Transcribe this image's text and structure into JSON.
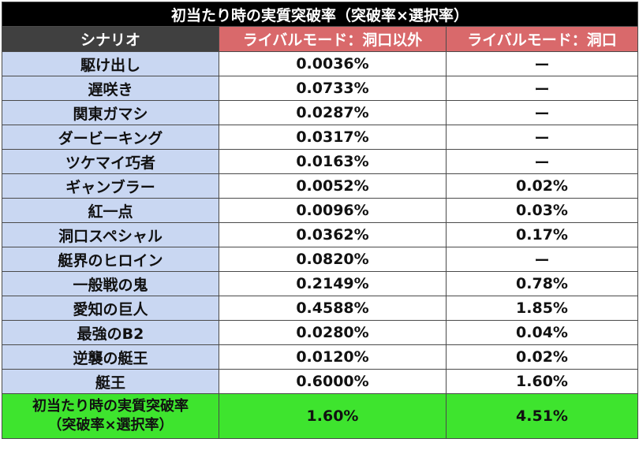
{
  "title": "初当たり時の実質突破率（突破率×選択率）",
  "headers": {
    "scenario": "シナリオ",
    "rival_other": "ライバルモード：洞口以外",
    "rival_horaguchi": "ライバルモード：洞口"
  },
  "rows": [
    {
      "scenario": "駆け出し",
      "rival_other": "0.0036%",
      "rival_horaguchi": "ー"
    },
    {
      "scenario": "遅咲き",
      "rival_other": "0.0733%",
      "rival_horaguchi": "ー"
    },
    {
      "scenario": "関東ガマシ",
      "rival_other": "0.0287%",
      "rival_horaguchi": "ー"
    },
    {
      "scenario": "ダービーキング",
      "rival_other": "0.0317%",
      "rival_horaguchi": "ー"
    },
    {
      "scenario": "ツケマイ巧者",
      "rival_other": "0.0163%",
      "rival_horaguchi": "ー"
    },
    {
      "scenario": "ギャンブラー",
      "rival_other": "0.0052%",
      "rival_horaguchi": "0.02%"
    },
    {
      "scenario": "紅一点",
      "rival_other": "0.0096%",
      "rival_horaguchi": "0.03%"
    },
    {
      "scenario": "洞口スペシャル",
      "rival_other": "0.0362%",
      "rival_horaguchi": "0.17%"
    },
    {
      "scenario": "艇界のヒロイン",
      "rival_other": "0.0820%",
      "rival_horaguchi": "ー"
    },
    {
      "scenario": "一般戦の鬼",
      "rival_other": "0.2149%",
      "rival_horaguchi": "0.78%"
    },
    {
      "scenario": "愛知の巨人",
      "rival_other": "0.4588%",
      "rival_horaguchi": "1.85%"
    },
    {
      "scenario": "最強のB2",
      "rival_other": "0.0280%",
      "rival_horaguchi": "0.04%"
    },
    {
      "scenario": "逆襲の艇王",
      "rival_other": "0.0120%",
      "rival_horaguchi": "0.02%"
    },
    {
      "scenario": "艇王",
      "rival_other": "0.6000%",
      "rival_horaguchi": "1.60%"
    }
  ],
  "total": {
    "label_line1": "初当たり時の実質突破率",
    "label_line2": "（突破率×選択率）",
    "rival_other": "1.60%",
    "rival_horaguchi": "4.51%"
  },
  "colors": {
    "title_bg": "#000000",
    "scenario_header_bg": "#404040",
    "rival_header_bg": "#d9696b",
    "scenario_cell_bg": "#c9d7f2",
    "total_row_bg": "#3ee42e"
  }
}
